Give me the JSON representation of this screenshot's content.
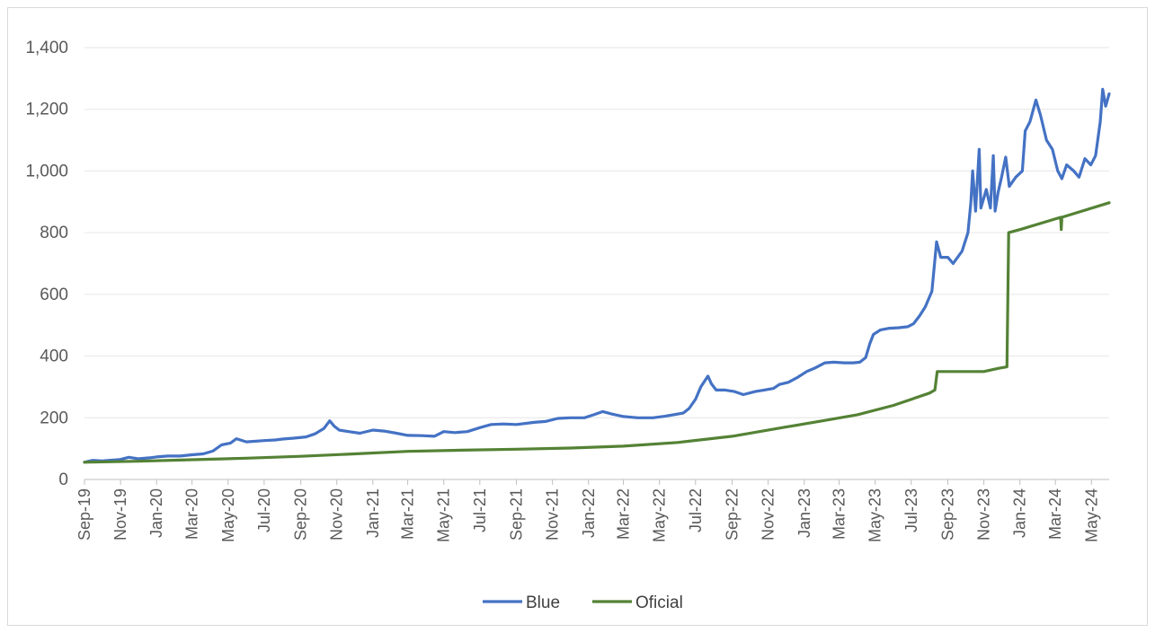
{
  "chart_data": {
    "type": "line",
    "title": "",
    "xlabel": "",
    "ylabel": "",
    "ylim": [
      0,
      1400
    ],
    "y_ticks": [
      0,
      200,
      400,
      600,
      800,
      1000,
      1200,
      1400
    ],
    "y_tick_labels": [
      "0",
      "200",
      "400",
      "600",
      "800",
      "1,000",
      "1,200",
      "1,400"
    ],
    "x_range": [
      "2019-09-01",
      "2024-05-31"
    ],
    "x_tick_dates": [
      "2019-09-01",
      "2019-11-01",
      "2020-01-01",
      "2020-03-01",
      "2020-05-01",
      "2020-07-01",
      "2020-09-01",
      "2020-11-01",
      "2021-01-01",
      "2021-03-01",
      "2021-05-01",
      "2021-07-01",
      "2021-09-01",
      "2021-11-01",
      "2022-01-01",
      "2022-03-01",
      "2022-05-01",
      "2022-07-01",
      "2022-09-01",
      "2022-11-01",
      "2023-01-01",
      "2023-03-01",
      "2023-05-01",
      "2023-07-01",
      "2023-09-01",
      "2023-11-01",
      "2024-01-01",
      "2024-03-01",
      "2024-05-01"
    ],
    "x_tick_labels": [
      "Sep-19",
      "Nov-19",
      "Jan-20",
      "Mar-20",
      "May-20",
      "Jul-20",
      "Sep-20",
      "Nov-20",
      "Jan-21",
      "Mar-21",
      "May-21",
      "Jul-21",
      "Sep-21",
      "Nov-21",
      "Jan-22",
      "Mar-22",
      "May-22",
      "Jul-22",
      "Sep-22",
      "Nov-22",
      "Jan-23",
      "Mar-23",
      "May-23",
      "Jul-23",
      "Sep-23",
      "Nov-23",
      "Jan-24",
      "Mar-24",
      "May-24"
    ],
    "grid": "horizontal",
    "legend_position": "bottom",
    "series": [
      {
        "name": "Blue",
        "color": "#4472c4",
        "points": [
          [
            "2019-09-01",
            56
          ],
          [
            "2019-09-15",
            62
          ],
          [
            "2019-10-01",
            60
          ],
          [
            "2019-10-20",
            63
          ],
          [
            "2019-11-01",
            65
          ],
          [
            "2019-11-15",
            72
          ],
          [
            "2019-12-01",
            67
          ],
          [
            "2019-12-20",
            70
          ],
          [
            "2020-01-01",
            73
          ],
          [
            "2020-01-20",
            76
          ],
          [
            "2020-02-10",
            76
          ],
          [
            "2020-03-01",
            80
          ],
          [
            "2020-03-20",
            83
          ],
          [
            "2020-04-05",
            92
          ],
          [
            "2020-04-20",
            112
          ],
          [
            "2020-05-05",
            118
          ],
          [
            "2020-05-15",
            132
          ],
          [
            "2020-06-01",
            122
          ],
          [
            "2020-07-01",
            126
          ],
          [
            "2020-07-20",
            128
          ],
          [
            "2020-08-01",
            131
          ],
          [
            "2020-08-20",
            134
          ],
          [
            "2020-09-10",
            138
          ],
          [
            "2020-09-25",
            148
          ],
          [
            "2020-10-10",
            165
          ],
          [
            "2020-10-20",
            190
          ],
          [
            "2020-10-28",
            172
          ],
          [
            "2020-11-05",
            160
          ],
          [
            "2020-11-25",
            154
          ],
          [
            "2020-12-10",
            150
          ],
          [
            "2021-01-01",
            160
          ],
          [
            "2021-01-20",
            157
          ],
          [
            "2021-02-10",
            150
          ],
          [
            "2021-03-01",
            143
          ],
          [
            "2021-03-25",
            142
          ],
          [
            "2021-04-15",
            140
          ],
          [
            "2021-05-01",
            155
          ],
          [
            "2021-05-20",
            152
          ],
          [
            "2021-06-10",
            155
          ],
          [
            "2021-07-01",
            168
          ],
          [
            "2021-07-20",
            178
          ],
          [
            "2021-08-10",
            180
          ],
          [
            "2021-09-01",
            178
          ],
          [
            "2021-10-01",
            185
          ],
          [
            "2021-10-20",
            188
          ],
          [
            "2021-11-10",
            198
          ],
          [
            "2021-12-01",
            200
          ],
          [
            "2021-12-25",
            200
          ],
          [
            "2022-01-10",
            210
          ],
          [
            "2022-01-25",
            220
          ],
          [
            "2022-02-10",
            212
          ],
          [
            "2022-03-01",
            204
          ],
          [
            "2022-03-25",
            200
          ],
          [
            "2022-04-20",
            200
          ],
          [
            "2022-05-10",
            205
          ],
          [
            "2022-05-20",
            208
          ],
          [
            "2022-06-10",
            215
          ],
          [
            "2022-06-20",
            230
          ],
          [
            "2022-07-01",
            260
          ],
          [
            "2022-07-10",
            300
          ],
          [
            "2022-07-22",
            335
          ],
          [
            "2022-07-28",
            310
          ],
          [
            "2022-08-05",
            290
          ],
          [
            "2022-08-20",
            290
          ],
          [
            "2022-09-05",
            285
          ],
          [
            "2022-09-20",
            275
          ],
          [
            "2022-10-10",
            285
          ],
          [
            "2022-10-25",
            290
          ],
          [
            "2022-11-10",
            295
          ],
          [
            "2022-11-20",
            308
          ],
          [
            "2022-12-05",
            315
          ],
          [
            "2022-12-20",
            330
          ],
          [
            "2023-01-05",
            350
          ],
          [
            "2023-01-20",
            362
          ],
          [
            "2023-02-05",
            378
          ],
          [
            "2023-02-20",
            380
          ],
          [
            "2023-03-10",
            378
          ],
          [
            "2023-03-25",
            378
          ],
          [
            "2023-04-05",
            380
          ],
          [
            "2023-04-15",
            395
          ],
          [
            "2023-04-22",
            440
          ],
          [
            "2023-04-28",
            470
          ],
          [
            "2023-05-10",
            485
          ],
          [
            "2023-05-25",
            490
          ],
          [
            "2023-06-10",
            492
          ],
          [
            "2023-06-25",
            495
          ],
          [
            "2023-07-05",
            505
          ],
          [
            "2023-07-15",
            530
          ],
          [
            "2023-07-25",
            560
          ],
          [
            "2023-08-05",
            610
          ],
          [
            "2023-08-13",
            770
          ],
          [
            "2023-08-20",
            720
          ],
          [
            "2023-09-01",
            720
          ],
          [
            "2023-09-10",
            700
          ],
          [
            "2023-09-25",
            740
          ],
          [
            "2023-10-05",
            800
          ],
          [
            "2023-10-10",
            900
          ],
          [
            "2023-10-13",
            1000
          ],
          [
            "2023-10-18",
            870
          ],
          [
            "2023-10-24",
            1070
          ],
          [
            "2023-10-27",
            880
          ],
          [
            "2023-11-05",
            940
          ],
          [
            "2023-11-12",
            880
          ],
          [
            "2023-11-17",
            1050
          ],
          [
            "2023-11-20",
            870
          ],
          [
            "2023-11-25",
            930
          ],
          [
            "2023-12-01",
            980
          ],
          [
            "2023-12-08",
            1045
          ],
          [
            "2023-12-14",
            950
          ],
          [
            "2023-12-25",
            980
          ],
          [
            "2024-01-05",
            1000
          ],
          [
            "2024-01-10",
            1130
          ],
          [
            "2024-01-18",
            1160
          ],
          [
            "2024-01-28",
            1230
          ],
          [
            "2024-02-05",
            1180
          ],
          [
            "2024-02-15",
            1100
          ],
          [
            "2024-02-25",
            1070
          ],
          [
            "2024-03-05",
            1000
          ],
          [
            "2024-03-12",
            975
          ],
          [
            "2024-03-20",
            1020
          ],
          [
            "2024-04-01",
            1000
          ],
          [
            "2024-04-10",
            980
          ],
          [
            "2024-04-20",
            1040
          ],
          [
            "2024-04-30",
            1020
          ],
          [
            "2024-05-08",
            1050
          ],
          [
            "2024-05-16",
            1160
          ],
          [
            "2024-05-20",
            1265
          ],
          [
            "2024-05-25",
            1210
          ],
          [
            "2024-05-31",
            1250
          ]
        ]
      },
      {
        "name": "Oficial",
        "color": "#548235",
        "points": [
          [
            "2019-09-01",
            56
          ],
          [
            "2019-12-01",
            59
          ],
          [
            "2020-03-01",
            64
          ],
          [
            "2020-06-01",
            69
          ],
          [
            "2020-09-01",
            75
          ],
          [
            "2020-12-01",
            83
          ],
          [
            "2021-03-01",
            91
          ],
          [
            "2021-06-01",
            95
          ],
          [
            "2021-09-01",
            98
          ],
          [
            "2021-12-01",
            102
          ],
          [
            "2022-03-01",
            108
          ],
          [
            "2022-06-01",
            120
          ],
          [
            "2022-09-01",
            140
          ],
          [
            "2022-12-01",
            170
          ],
          [
            "2023-02-01",
            190
          ],
          [
            "2023-04-01",
            210
          ],
          [
            "2023-06-01",
            240
          ],
          [
            "2023-08-01",
            280
          ],
          [
            "2023-08-10",
            290
          ],
          [
            "2023-08-14",
            350
          ],
          [
            "2023-10-01",
            350
          ],
          [
            "2023-11-01",
            350
          ],
          [
            "2023-11-25",
            360
          ],
          [
            "2023-12-10",
            365
          ],
          [
            "2023-12-13",
            800
          ],
          [
            "2024-01-01",
            810
          ],
          [
            "2024-03-10",
            850
          ],
          [
            "2024-03-11",
            810
          ],
          [
            "2024-03-12",
            850
          ],
          [
            "2024-05-31",
            897
          ]
        ]
      }
    ]
  }
}
